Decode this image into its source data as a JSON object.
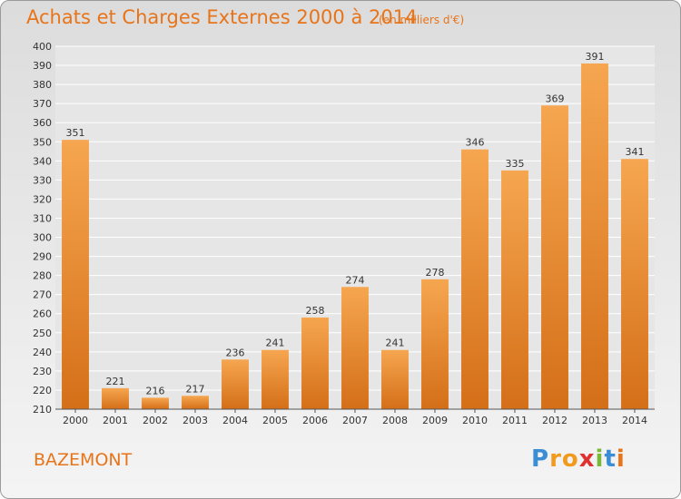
{
  "title": "Achats et Charges Externes 2000 à 2014",
  "subtitle": "(en milliers d'€)",
  "commune": "BAZEMONT",
  "logo": {
    "letters": [
      "P",
      "r",
      "o",
      "x",
      "i",
      "t",
      "i"
    ],
    "colors": [
      "#3b8dd6",
      "#f29a1e",
      "#f29a1e",
      "#e03030",
      "#7ab83a",
      "#3b8dd6",
      "#e8741a"
    ]
  },
  "colors": {
    "accent": "#e8741a",
    "bar_top": "#f6a650",
    "bar_bottom": "#d46f18"
  },
  "chart_data": {
    "type": "bar",
    "categories": [
      "2000",
      "2001",
      "2002",
      "2003",
      "2004",
      "2005",
      "2006",
      "2007",
      "2008",
      "2009",
      "2010",
      "2011",
      "2012",
      "2013",
      "2014"
    ],
    "values": [
      351,
      221,
      216,
      217,
      236,
      241,
      258,
      274,
      241,
      278,
      346,
      335,
      369,
      391,
      341
    ],
    "ylim": [
      210,
      400
    ],
    "yticks": [
      210,
      220,
      230,
      240,
      250,
      260,
      270,
      280,
      290,
      300,
      310,
      320,
      330,
      340,
      350,
      360,
      370,
      380,
      390,
      400
    ],
    "grid": true
  }
}
